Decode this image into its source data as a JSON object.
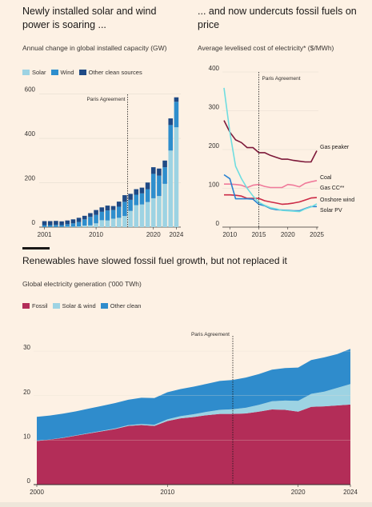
{
  "panels": {
    "top_left": {
      "title": "Newly installed solar and wind power is soaring ...",
      "title_line1": "Newly installed solar and wind",
      "title_line2": "power is soaring ...",
      "subtitle": "Annual change in global installed capacity (GW)"
    },
    "top_right": {
      "title": "... and now undercuts fossil fuels on price",
      "title_line1": "... and now undercuts fossil fuels on",
      "title_line2": "price",
      "subtitle": "Average levelised cost of electricity* ($/MWh)"
    },
    "bottom": {
      "title": "Renewables have slowed fossil fuel growth, but not replaced it",
      "subtitle": "Global electricity generation ('000 TWh)"
    }
  },
  "colors": {
    "background": "#fdf1e4",
    "solar": "#9dd3e3",
    "wind": "#2e8ecd",
    "other_clean": "#1f4a85",
    "gas_peaker": "#7d1839",
    "coal": "#f07b9b",
    "gas_cc": "#cc2a46",
    "onshore_wind": "#2a82d1",
    "solar_pv": "#6fdde0",
    "fossil": "#b32d58",
    "solar_wind_area": "#9dd3e3",
    "other_clean_area": "#2f8ccc"
  },
  "chart_data": [
    {
      "type": "bar",
      "stacked": true,
      "title": "Newly installed solar and wind power is soaring ...",
      "subtitle": "Annual change in global installed capacity (GW)",
      "categories": [
        2001,
        2002,
        2003,
        2004,
        2005,
        2006,
        2007,
        2008,
        2009,
        2010,
        2011,
        2012,
        2013,
        2014,
        2015,
        2016,
        2017,
        2018,
        2019,
        2020,
        2021,
        2022,
        2023,
        2024
      ],
      "series": [
        {
          "name": "Solar",
          "values": [
            1,
            1,
            1,
            1,
            2,
            2,
            3,
            7,
            8,
            17,
            31,
            30,
            38,
            42,
            50,
            73,
            99,
            102,
            113,
            130,
            140,
            195,
            345,
            450
          ]
        },
        {
          "name": "Wind",
          "values": [
            8,
            8,
            9,
            8,
            11,
            15,
            20,
            28,
            38,
            38,
            38,
            45,
            39,
            50,
            64,
            50,
            47,
            50,
            58,
            110,
            92,
            75,
            115,
            115
          ]
        },
        {
          "name": "Other clean sources",
          "values": [
            18,
            18,
            18,
            17,
            17,
            18,
            19,
            16,
            17,
            22,
            20,
            22,
            18,
            23,
            30,
            27,
            25,
            26,
            30,
            30,
            32,
            30,
            30,
            20
          ]
        }
      ],
      "xticks": [
        "2001",
        "2010",
        "2020",
        "2024"
      ],
      "yticks": [
        0,
        200,
        400,
        600
      ],
      "ylim": [
        0,
        620
      ],
      "annotation": "Paris Agreement",
      "annotation_x": 2015.5,
      "legend": [
        "Solar",
        "Wind",
        "Other clean sources"
      ]
    },
    {
      "type": "line",
      "title": "... and now undercuts fossil fuels on price",
      "subtitle": "Average levelised cost of electricity* ($/MWh)",
      "x": [
        2009,
        2010,
        2011,
        2012,
        2013,
        2014,
        2015,
        2016,
        2017,
        2018,
        2019,
        2020,
        2021,
        2022,
        2023,
        2024,
        2025
      ],
      "series": [
        {
          "name": "Gas peaker",
          "values": [
            275,
            245,
            225,
            218,
            205,
            205,
            192,
            192,
            185,
            180,
            175,
            175,
            172,
            170,
            168,
            168,
            197
          ]
        },
        {
          "name": "Coal",
          "values": [
            111,
            111,
            110,
            108,
            102,
            108,
            110,
            105,
            102,
            102,
            102,
            110,
            108,
            104,
            113,
            117,
            120
          ]
        },
        {
          "name": "Gas CC**",
          "values": [
            83,
            83,
            82,
            80,
            74,
            74,
            74,
            68,
            65,
            62,
            59,
            60,
            62,
            65,
            70,
            75,
            76
          ]
        },
        {
          "name": "Onshore wind",
          "values": [
            135,
            125,
            73,
            73,
            73,
            72,
            59,
            55,
            48,
            45,
            44,
            43,
            42,
            42,
            48,
            53,
            53
          ]
        },
        {
          "name": "Solar PV",
          "values": [
            359,
            245,
            157,
            125,
            100,
            80,
            64,
            56,
            50,
            47,
            43,
            42,
            41,
            40,
            47,
            52,
            60
          ]
        }
      ],
      "xticks": [
        "2010",
        "2015",
        "2020",
        "2025"
      ],
      "yticks": [
        0,
        100,
        200,
        300,
        400
      ],
      "ylim": [
        0,
        400
      ],
      "annotation": "Paris Agreement",
      "annotation_x": 2015
    },
    {
      "type": "area",
      "stacked": true,
      "title": "Renewables have slowed fossil fuel growth, but not replaced it",
      "subtitle": "Global electricity generation ('000 TWh)",
      "x": [
        2000,
        2001,
        2002,
        2003,
        2004,
        2005,
        2006,
        2007,
        2008,
        2009,
        2010,
        2011,
        2012,
        2013,
        2014,
        2015,
        2016,
        2017,
        2018,
        2019,
        2020,
        2021,
        2022,
        2023,
        2024
      ],
      "series": [
        {
          "name": "Fossil",
          "values": [
            9.8,
            10.1,
            10.5,
            11.0,
            11.5,
            12.0,
            12.5,
            13.2,
            13.4,
            13.2,
            14.3,
            14.9,
            15.2,
            15.6,
            15.9,
            15.9,
            16.0,
            16.4,
            16.9,
            16.8,
            16.4,
            17.5,
            17.6,
            17.8,
            18.0
          ]
        },
        {
          "name": "Solar & wind",
          "values": [
            0.03,
            0.04,
            0.06,
            0.07,
            0.09,
            0.11,
            0.13,
            0.18,
            0.22,
            0.27,
            0.37,
            0.48,
            0.62,
            0.76,
            0.9,
            1.04,
            1.28,
            1.55,
            1.85,
            2.1,
            2.42,
            2.9,
            3.3,
            3.95,
            4.6
          ]
        },
        {
          "name": "Other clean",
          "values": [
            5.4,
            5.4,
            5.4,
            5.4,
            5.5,
            5.6,
            5.7,
            5.7,
            5.9,
            6.0,
            6.1,
            6.1,
            6.2,
            6.3,
            6.5,
            6.6,
            6.8,
            6.9,
            7.1,
            7.3,
            7.5,
            7.6,
            7.7,
            7.6,
            7.9
          ]
        }
      ],
      "xticks": [
        "2000",
        "2010",
        "2020",
        "2024"
      ],
      "yticks": [
        0,
        10,
        20,
        30
      ],
      "ylim": [
        0,
        32
      ],
      "annotation": "Paris Agreement",
      "annotation_x": 2015,
      "legend": [
        "Fossil",
        "Solar & wind",
        "Other clean"
      ]
    }
  ]
}
